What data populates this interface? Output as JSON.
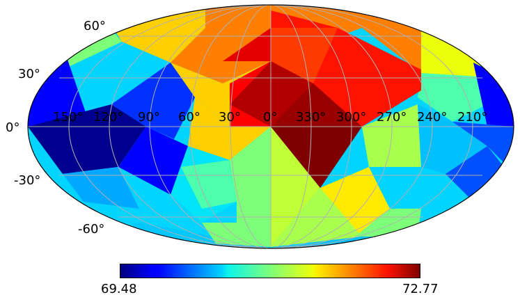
{
  "map": {
    "projection": "Mollweide",
    "colormap": "jet",
    "grid": true,
    "lon_labels": [
      "150°",
      "120°",
      "90°",
      "60°",
      "30°",
      "0°",
      "330°",
      "300°",
      "270°",
      "240°",
      "210°"
    ],
    "lat_labels": [
      "60°",
      "30°",
      "0°",
      "-30°",
      "-60°"
    ]
  },
  "colorbar": {
    "min_label": "69.48",
    "max_label": "72.77",
    "min": 69.48,
    "max": 72.77
  },
  "pixel_values": {
    "description_order": "HEALPix Nside=2 regions as seen, jet scale 0-1",
    "north_cap_center": 0.8,
    "equator_center": 1.0
  }
}
